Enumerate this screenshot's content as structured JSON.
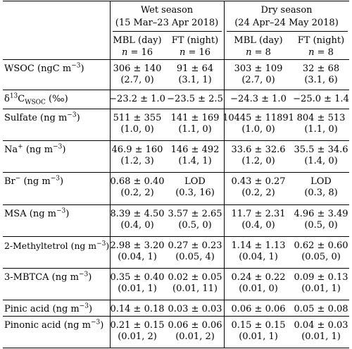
{
  "header": {
    "wet_title": "Wet season",
    "wet_dates": "(15 Mar–23 Apr 2018)",
    "dry_title": "Dry season",
    "dry_dates": "(24 Apr–24 May 2018)",
    "sub": [
      {
        "label": "MBL (day)",
        "n": "16"
      },
      {
        "label": "FT (night)",
        "n": "16"
      },
      {
        "label": "MBL (day)",
        "n": "8"
      },
      {
        "label": "FT (night)",
        "n": "8"
      }
    ]
  },
  "rows": [
    {
      "label": "WSOC",
      "unit": "ngC ",
      "exp": "−3",
      "cells": [
        {
          "value": "306 ± 140",
          "sub": "(2.7, 0)"
        },
        {
          "value": "91 ± 64",
          "sub": "(3.1, 1)"
        },
        {
          "value": "303 ± 109",
          "sub": "(2.7, 0)"
        },
        {
          "value": "32 ± 68",
          "sub": "(3.1, 6)"
        }
      ]
    },
    {
      "label_sub": "WSOC",
      "unit": "‰",
      "cells": [
        {
          "value": "−23.2 ± 1.0"
        },
        {
          "value": "−23.5 ± 2.5"
        },
        {
          "value": "−24.3 ± 1.0"
        },
        {
          "value": "−25.0 ± 1.4"
        }
      ]
    },
    {
      "label": "Sulfate",
      "unit": "ng ",
      "exp": "−3",
      "cells": [
        {
          "value": "511 ± 355",
          "sub": "(1.0, 0)"
        },
        {
          "value": "141 ± 169",
          "sub": "(1.1, 0)"
        },
        {
          "value": "10445 ± 11891",
          "sub": "(1.0, 0)"
        },
        {
          "value": "804 ± 513",
          "sub": "(1.1, 0)"
        }
      ]
    },
    {
      "label": "Na",
      "charge": "+",
      "unit": "ng ",
      "exp": "−3",
      "cells": [
        {
          "value": "46.9 ± 160",
          "sub": "(1.2, 3)"
        },
        {
          "value": "146 ± 492",
          "sub": "(1.4, 1)"
        },
        {
          "value": "33.6 ± 32.6",
          "sub": "(1.2, 0)"
        },
        {
          "value": "35.5 ± 34.6",
          "sub": "(1.4, 0)"
        }
      ]
    },
    {
      "label": "Br",
      "charge": "−",
      "unit": "ng ",
      "exp": "−3",
      "cells": [
        {
          "value": "0.68 ± 0.40",
          "sub": "(0.2, 2)"
        },
        {
          "value": "LOD",
          "sub": "(0.3, 16)"
        },
        {
          "value": "0.43 ± 0.27",
          "sub": "(0.2, 2)"
        },
        {
          "value": "LOD",
          "sub": "(0.3, 8)"
        }
      ]
    },
    {
      "label": "MSA",
      "unit": "ng ",
      "exp": "−3",
      "cells": [
        {
          "value": "8.39 ± 4.50",
          "sub": "(0.4, 0)"
        },
        {
          "value": "3.57 ± 2.65",
          "sub": "(0.5, 0)"
        },
        {
          "value": "11.7 ± 2.31",
          "sub": "(0.4, 0)"
        },
        {
          "value": "4.96 ± 3.49",
          "sub": "(0.5, 0)"
        }
      ]
    },
    {
      "label": "2-Methyltetrol",
      "unit": "ng ",
      "exp": "−3",
      "cells": [
        {
          "value": "2.98 ± 3.20",
          "sub": "(0.04, 1)"
        },
        {
          "value": "0.27 ± 0.23",
          "sub": "(0.05, 4)"
        },
        {
          "value": "1.14 ± 1.13",
          "sub": "(0.04, 1)"
        },
        {
          "value": "0.62 ± 0.60",
          "sub": "(0.05, 0)"
        }
      ]
    },
    {
      "label": "3-MBTCA",
      "unit": "ng ",
      "exp": "−3",
      "cells": [
        {
          "value": "0.35 ± 0.40",
          "sub": "(0.01, 1)"
        },
        {
          "value": "0.02 ± 0.05",
          "sub": "(0.01, 11)"
        },
        {
          "value": "0.24 ± 0.22",
          "sub": "(0.01, 0)"
        },
        {
          "value": "0.09 ± 0.13",
          "sub": "(0.01, 1)"
        }
      ]
    },
    {
      "label": "Pinic acid",
      "unit": "ng ",
      "exp": "−3",
      "cells": [
        {
          "value": "0.14 ± 0.18"
        },
        {
          "value": "0.03 ± 0.03"
        },
        {
          "value": "0.06 ± 0.06"
        },
        {
          "value": "0.05 ± 0.08"
        }
      ]
    },
    {
      "label": "Pinonic acid",
      "unit": "ng ",
      "exp": "−3",
      "cells": [
        {
          "value": "0.21 ± 0.15",
          "sub": "(0.01, 2)"
        },
        {
          "value": "0.06 ± 0.06",
          "sub": "(0.01, 2)"
        },
        {
          "value": "0.15 ± 0.15",
          "sub": "(0.01, 1)"
        },
        {
          "value": "0.04 ± 0.03",
          "sub": "(0.01, 1)"
        }
      ]
    }
  ]
}
